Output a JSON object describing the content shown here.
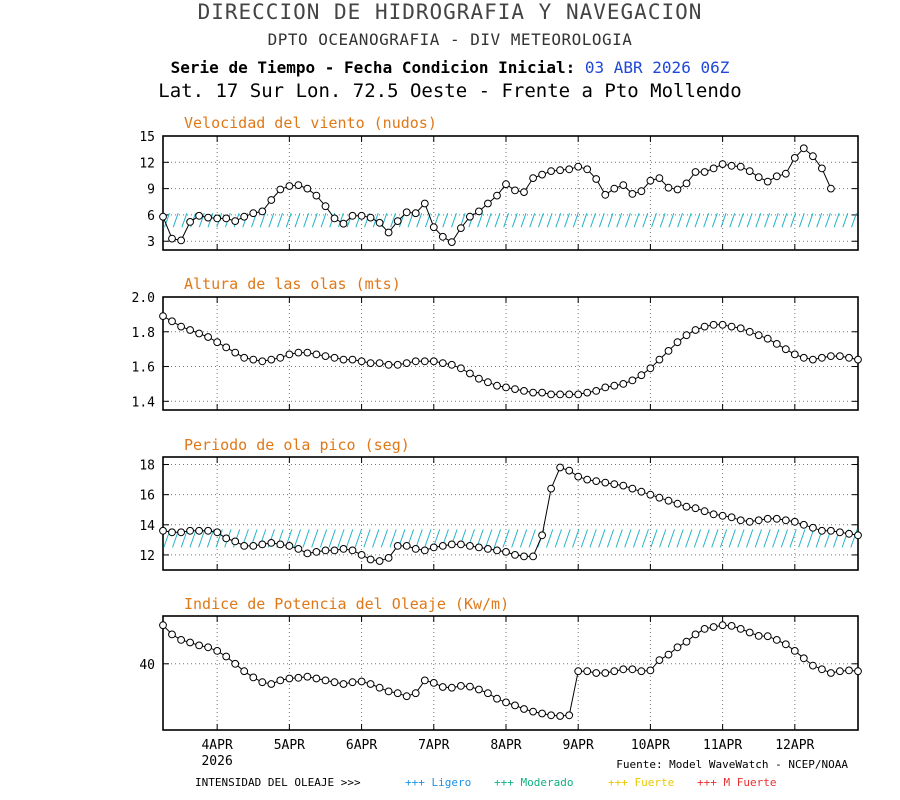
{
  "header": {
    "title": "DIRECCION DE HIDROGRAFIA Y NAVEGACION",
    "subtitle": "DPTO OCEANOGRAFIA - DIV METEOROLOGIA",
    "series_label": "Serie de Tiempo - Fecha Condicion Inicial:",
    "init_date": "03 ABR 2026 06Z",
    "location": "Lat. 17 Sur  Lon. 72.5 Oeste - Frente a Pto Mollendo"
  },
  "footer": {
    "source": "Fuente: Model WaveWatch - NCEP/NOAA",
    "intensity_label": "INTENSIDAD DEL OLEAJE >>>",
    "legend": [
      {
        "label": "+++ Ligero",
        "color": "#1e90e0"
      },
      {
        "label": "+++ Moderado",
        "color": "#10b080"
      },
      {
        "label": "+++ Fuerte",
        "color": "#e8c800"
      },
      {
        "label": "+++ M Fuerte",
        "color": "#e83030"
      }
    ]
  },
  "colors": {
    "title": "#e07818",
    "arrows": "#22b4c8",
    "line": "#000000"
  },
  "chart_data": [
    {
      "type": "line",
      "title": "Velocidad del viento (nudos)",
      "x_axis": {
        "ticks": [
          "4APR",
          "5APR",
          "6APR",
          "7APR",
          "8APR",
          "9APR",
          "10APR",
          "11APR",
          "12APR"
        ],
        "tick_positions_hours": [
          18,
          42,
          66,
          90,
          114,
          138,
          162,
          186,
          210
        ],
        "extra_label": "2026",
        "start": "03 ABR 2026 06Z",
        "step_hours": 3
      },
      "ylim": [
        2,
        15
      ],
      "yticks": [
        3,
        6,
        9,
        12,
        15
      ],
      "has_direction_arrows": true,
      "values": [
        5.8,
        3.3,
        3.1,
        5.2,
        5.9,
        5.7,
        5.6,
        5.6,
        5.3,
        5.8,
        6.2,
        6.4,
        7.7,
        8.9,
        9.3,
        9.4,
        9.0,
        8.2,
        7.0,
        5.6,
        5.0,
        5.9,
        5.9,
        5.7,
        5.1,
        4.0,
        5.3,
        6.3,
        6.2,
        7.3,
        4.6,
        3.5,
        2.9,
        4.5,
        5.8,
        6.4,
        7.3,
        8.2,
        9.5,
        8.8,
        8.6,
        10.2,
        10.6,
        11.0,
        11.1,
        11.2,
        11.5,
        11.2,
        10.1,
        8.3,
        9.0,
        9.4,
        8.4,
        8.7,
        9.9,
        10.2,
        9.1,
        8.9,
        9.6,
        10.9,
        10.9,
        11.3,
        11.8,
        11.6,
        11.5,
        11.0,
        10.3,
        9.8,
        10.4,
        10.7,
        12.5,
        13.6,
        12.7,
        11.3,
        9.0
      ]
    },
    {
      "type": "line",
      "title": "Altura de las olas (mts)",
      "ylim": [
        1.35,
        2.0
      ],
      "yticks": [
        1.4,
        1.6,
        1.8,
        2.0
      ],
      "has_direction_arrows": false,
      "values": [
        1.89,
        1.86,
        1.83,
        1.81,
        1.79,
        1.77,
        1.74,
        1.71,
        1.68,
        1.65,
        1.64,
        1.63,
        1.64,
        1.65,
        1.67,
        1.68,
        1.68,
        1.67,
        1.66,
        1.65,
        1.64,
        1.64,
        1.63,
        1.62,
        1.62,
        1.61,
        1.61,
        1.62,
        1.63,
        1.63,
        1.63,
        1.62,
        1.61,
        1.59,
        1.56,
        1.53,
        1.51,
        1.49,
        1.48,
        1.47,
        1.46,
        1.45,
        1.45,
        1.44,
        1.44,
        1.44,
        1.44,
        1.45,
        1.46,
        1.48,
        1.49,
        1.5,
        1.52,
        1.55,
        1.59,
        1.64,
        1.69,
        1.74,
        1.78,
        1.81,
        1.83,
        1.84,
        1.84,
        1.83,
        1.82,
        1.8,
        1.78,
        1.76,
        1.73,
        1.7,
        1.67,
        1.65,
        1.64,
        1.65,
        1.66,
        1.66,
        1.65,
        1.64
      ]
    },
    {
      "type": "line",
      "title": "Periodo de ola pico (seg)",
      "ylim": [
        11,
        18.5
      ],
      "yticks": [
        12,
        14,
        16,
        18
      ],
      "has_direction_arrows": true,
      "values": [
        13.6,
        13.5,
        13.5,
        13.6,
        13.6,
        13.6,
        13.5,
        13.1,
        12.9,
        12.6,
        12.6,
        12.7,
        12.8,
        12.7,
        12.6,
        12.4,
        12.1,
        12.2,
        12.3,
        12.3,
        12.4,
        12.3,
        12.0,
        11.7,
        11.6,
        11.8,
        12.6,
        12.6,
        12.4,
        12.3,
        12.5,
        12.6,
        12.7,
        12.7,
        12.6,
        12.5,
        12.4,
        12.3,
        12.2,
        12.0,
        11.9,
        11.9,
        13.3,
        16.4,
        17.8,
        17.6,
        17.2,
        17.0,
        16.9,
        16.8,
        16.7,
        16.6,
        16.4,
        16.2,
        16.0,
        15.8,
        15.6,
        15.4,
        15.2,
        15.1,
        14.9,
        14.7,
        14.6,
        14.5,
        14.3,
        14.2,
        14.3,
        14.4,
        14.4,
        14.3,
        14.2,
        14.0,
        13.8,
        13.6,
        13.6,
        13.5,
        13.4,
        13.3
      ]
    },
    {
      "type": "line",
      "title": "Indice de Potencia del Oleaje (Kw/m)",
      "ylim": [
        22,
        53
      ],
      "yticks": [
        40
      ],
      "has_direction_arrows": false,
      "values": [
        50.5,
        48.0,
        46.5,
        45.8,
        45.0,
        44.5,
        43.5,
        42.0,
        40.0,
        38.0,
        36.3,
        35.0,
        34.5,
        35.5,
        36.0,
        36.2,
        36.5,
        36.0,
        35.5,
        35.0,
        34.5,
        35.0,
        35.2,
        34.5,
        33.5,
        32.5,
        32.0,
        31.2,
        32.0,
        35.5,
        34.8,
        33.7,
        33.5,
        34.0,
        33.8,
        33.0,
        32.0,
        30.5,
        29.5,
        28.7,
        27.7,
        27.0,
        26.5,
        26.0,
        25.8,
        26.0,
        38.0,
        38.0,
        37.5,
        37.5,
        38.0,
        38.5,
        38.5,
        38.0,
        38.2,
        41.0,
        42.5,
        44.5,
        46.0,
        48.0,
        49.5,
        50.0,
        50.5,
        50.3,
        49.5,
        48.5,
        47.6,
        47.5,
        46.5,
        45.3,
        43.5,
        41.5,
        39.5,
        38.5,
        37.5,
        38.0,
        38.2,
        38.0,
        37.0
      ]
    }
  ]
}
